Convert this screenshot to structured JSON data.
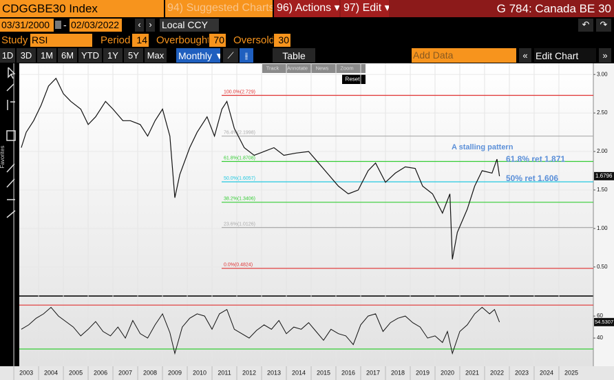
{
  "header": {
    "ticker": "CDGGBE30 Index",
    "suggested": "94) Suggested Charts",
    "actions": "96) Actions ▾",
    "edit": "97) Edit ▾",
    "title": "G 784: Canada BE 30"
  },
  "dates": {
    "start": "03/31/2000",
    "separator": "-",
    "end": "02/03/2022",
    "currency": "Local CCY"
  },
  "study": {
    "label": "Study",
    "name": "RSI",
    "period_label": "Period",
    "period": 14,
    "overbought_label": "Overbought",
    "overbought": 70,
    "oversold_label": "Oversold",
    "oversold": 30
  },
  "ranges": [
    "1D",
    "3D",
    "1M",
    "6M",
    "YTD",
    "1Y",
    "5Y",
    "Max"
  ],
  "frequency": "Monthly ▼",
  "table": "Table",
  "add_data": "Add Data",
  "edit_chart": "Edit Chart",
  "chart_tools": [
    "Track",
    "Annotate",
    "News",
    "Zoom"
  ],
  "reset": "Reset",
  "favorites": "Favorites",
  "chart_data": {
    "type": "line",
    "color": "#111111",
    "x": [
      2002.8,
      2003.0,
      2003.3,
      2003.6,
      2003.9,
      2004.2,
      2004.5,
      2004.8,
      2005.2,
      2005.5,
      2005.8,
      2006.2,
      2006.5,
      2006.9,
      2007.2,
      2007.6,
      2007.9,
      2008.2,
      2008.5,
      2008.8,
      2009.0,
      2009.2,
      2009.6,
      2009.9,
      2010.3,
      2010.6,
      2010.9,
      2011.1,
      2011.4,
      2011.8,
      2012.2,
      2012.6,
      2013.0,
      2013.4,
      2013.9,
      2014.4,
      2014.8,
      2015.2,
      2015.6,
      2016.0,
      2016.4,
      2016.8,
      2017.1,
      2017.5,
      2017.9,
      2018.3,
      2018.7,
      2019.0,
      2019.4,
      2019.8,
      2020.1,
      2020.2,
      2020.4,
      2020.8,
      2021.1,
      2021.4,
      2021.8,
      2022.0,
      2022.1
    ],
    "values": [
      2.05,
      2.25,
      2.4,
      2.6,
      2.85,
      2.95,
      2.75,
      2.65,
      2.55,
      2.35,
      2.45,
      2.65,
      2.55,
      2.4,
      2.4,
      2.35,
      2.2,
      2.4,
      2.55,
      2.2,
      1.4,
      1.7,
      2.05,
      2.25,
      2.45,
      2.2,
      2.55,
      2.65,
      2.3,
      2.05,
      1.95,
      2.0,
      2.05,
      1.95,
      1.98,
      2.0,
      1.85,
      1.7,
      1.55,
      1.45,
      1.5,
      1.75,
      1.85,
      1.6,
      1.72,
      1.8,
      1.78,
      1.55,
      1.45,
      1.2,
      1.45,
      0.6,
      0.95,
      1.25,
      1.55,
      1.75,
      1.72,
      1.9,
      1.6796
    ],
    "ylim": [
      0.15,
      3.1
    ],
    "yticks": [
      {
        "value": 0.5,
        "label": "0.50"
      },
      {
        "value": 1,
        "label": "1.00"
      },
      {
        "value": 1.5,
        "label": "1.50"
      },
      {
        "value": 2,
        "label": "2.00"
      },
      {
        "value": 2.5,
        "label": "2.50"
      },
      {
        "value": 3,
        "label": "3.00"
      }
    ],
    "xlim": [
      2002.72,
      2025.89
    ],
    "xticks": [
      2003,
      2004,
      2005,
      2006,
      2007,
      2008,
      2009,
      2010,
      2011,
      2012,
      2013,
      2014,
      2015,
      2016,
      2017,
      2018,
      2019,
      2020,
      2021,
      2022,
      2023,
      2024,
      2025
    ],
    "grid": true,
    "fib_levels": [
      {
        "value": 2.729,
        "label": "100.0%(2.729)",
        "color": "#e03030"
      },
      {
        "value": 2.1998,
        "label": "76.4%(2.1998)",
        "color": "#aaaaaa"
      },
      {
        "value": 1.8708,
        "label": "61.8%(1.8708)",
        "color": "#33cc33"
      },
      {
        "value": 1.6057,
        "label": "50.0%(1.6057)",
        "color": "#22c8e0"
      },
      {
        "value": 1.3406,
        "label": "38.2%(1.3406)",
        "color": "#33cc33"
      },
      {
        "value": 1.0126,
        "label": "23.6%(1.0126)",
        "color": "#aaaaaa"
      },
      {
        "value": 0.4824,
        "label": "0.0%(0.4824)",
        "color": "#e03030"
      }
    ],
    "annotations": [
      "A stalling pattern",
      "61.8% ret 1.871",
      "50% ret 1.606"
    ],
    "rsi": {
      "color": "#111111",
      "x": [
        2002.8,
        2003.1,
        2003.4,
        2003.7,
        2004.0,
        2004.3,
        2004.6,
        2004.9,
        2005.2,
        2005.5,
        2005.8,
        2006.1,
        2006.4,
        2006.7,
        2007.0,
        2007.3,
        2007.6,
        2007.9,
        2008.2,
        2008.5,
        2008.8,
        2009.0,
        2009.3,
        2009.6,
        2009.9,
        2010.2,
        2010.5,
        2010.8,
        2011.1,
        2011.4,
        2011.7,
        2012.0,
        2012.3,
        2012.6,
        2012.9,
        2013.2,
        2013.5,
        2013.8,
        2014.1,
        2014.4,
        2014.7,
        2015.0,
        2015.3,
        2015.6,
        2015.9,
        2016.2,
        2016.5,
        2016.8,
        2017.1,
        2017.4,
        2017.7,
        2018.0,
        2018.3,
        2018.6,
        2018.9,
        2019.2,
        2019.5,
        2019.8,
        2020.0,
        2020.2,
        2020.5,
        2020.8,
        2021.1,
        2021.4,
        2021.7,
        2021.9,
        2022.1
      ],
      "values": [
        48,
        52,
        58,
        62,
        68,
        60,
        55,
        50,
        42,
        48,
        55,
        46,
        42,
        50,
        40,
        56,
        44,
        40,
        52,
        62,
        45,
        26,
        50,
        58,
        62,
        60,
        48,
        62,
        66,
        48,
        44,
        40,
        47,
        52,
        48,
        56,
        44,
        50,
        48,
        54,
        46,
        38,
        48,
        44,
        42,
        34,
        52,
        60,
        62,
        46,
        54,
        58,
        60,
        54,
        50,
        40,
        42,
        36,
        46,
        26,
        46,
        52,
        62,
        68,
        62,
        66,
        54.5307
      ],
      "ylim": [
        20,
        77
      ],
      "yticks": [
        40,
        60
      ]
    }
  }
}
